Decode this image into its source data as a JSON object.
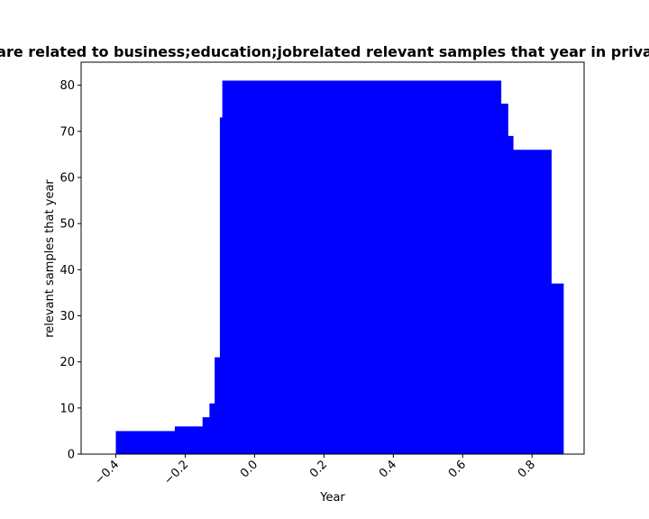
{
  "chart_data": {
    "type": "bar",
    "title": "are related to business;education;jobrelated relevant samples that year in priva",
    "xlabel": "Year",
    "ylabel": "relevant samples that year",
    "xlim": [
      -0.5,
      0.95
    ],
    "ylim": [
      0,
      85
    ],
    "grid": false,
    "color": "#0000ff",
    "xticks": [
      -0.4,
      -0.2,
      0.0,
      0.2,
      0.4,
      0.6,
      0.8
    ],
    "xtick_labels": [
      "−0.4",
      "−0.2",
      "0.0",
      "0.2",
      "0.4",
      "0.6",
      "0.8"
    ],
    "yticks": [
      0,
      10,
      20,
      30,
      40,
      50,
      60,
      70,
      80
    ],
    "ytick_labels": [
      "0",
      "10",
      "20",
      "30",
      "40",
      "50",
      "60",
      "70",
      "80"
    ],
    "bars": [
      {
        "x0": -0.4,
        "x1": -0.23,
        "value": 5
      },
      {
        "x0": -0.23,
        "x1": -0.15,
        "value": 6
      },
      {
        "x0": -0.15,
        "x1": -0.13,
        "value": 8
      },
      {
        "x0": -0.13,
        "x1": -0.115,
        "value": 11
      },
      {
        "x0": -0.115,
        "x1": -0.1,
        "value": 21
      },
      {
        "x0": -0.1,
        "x1": -0.093,
        "value": 73
      },
      {
        "x0": -0.093,
        "x1": 0.71,
        "value": 81
      },
      {
        "x0": 0.71,
        "x1": 0.73,
        "value": 76
      },
      {
        "x0": 0.73,
        "x1": 0.745,
        "value": 69
      },
      {
        "x0": 0.745,
        "x1": 0.855,
        "value": 66
      },
      {
        "x0": 0.855,
        "x1": 0.89,
        "value": 37
      }
    ]
  }
}
